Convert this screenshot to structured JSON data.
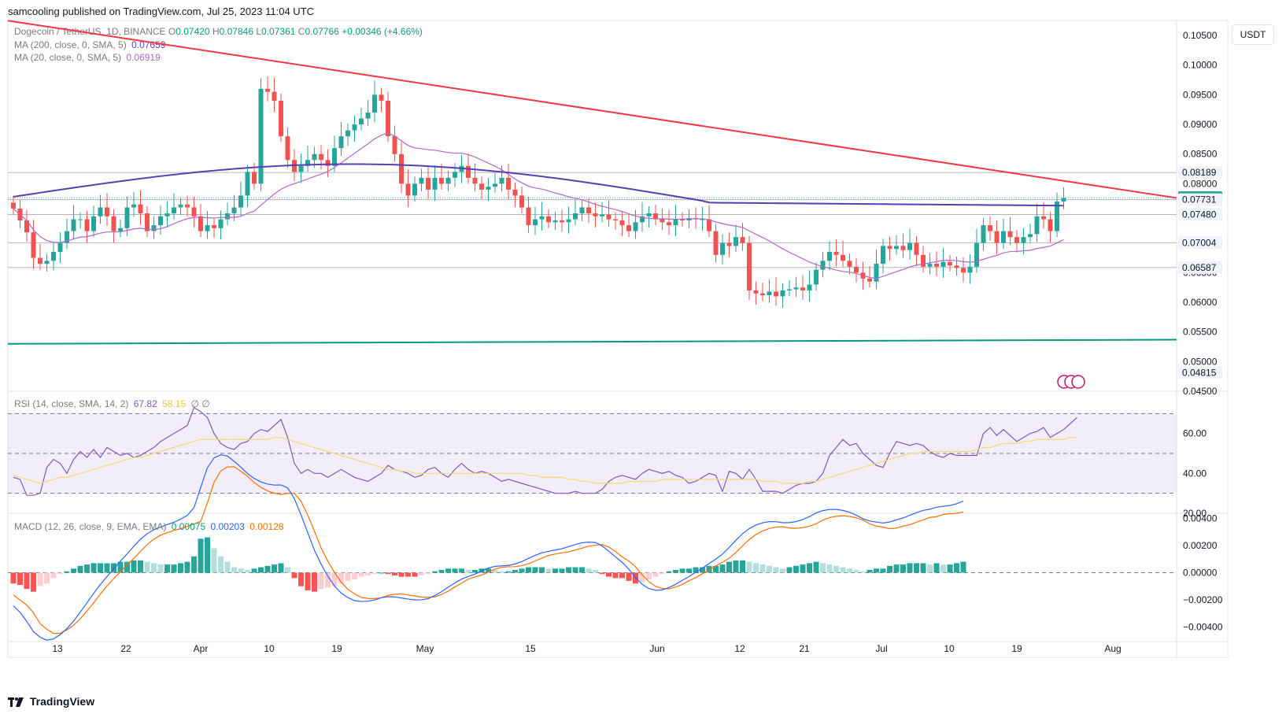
{
  "header": {
    "text": "samcooling published on TradingView.com, Jul 25, 2023 11:04 UTC"
  },
  "symbol": {
    "name": "Dogecoin / TetherUS, 1D, BINANCE",
    "open_label": "O",
    "open": "0.07420",
    "high_label": "H",
    "high": "0.07846",
    "low_label": "L",
    "low": "0.07361",
    "close_label": "C",
    "close": "0.07766",
    "change": "+0.00346 (+4.66%)"
  },
  "ma200": {
    "label": "MA (200, close, 0, SMA, 5)",
    "value": "0.07659",
    "color": "#5b3fb0"
  },
  "ma20": {
    "label": "MA (20, close, 0, SMA, 5)",
    "value": "0.06919",
    "color": "#b467c9"
  },
  "currency_button": "USDT",
  "footer": {
    "brand": "TradingView"
  },
  "colors": {
    "up": "#26a69a",
    "down": "#ef5350",
    "resistance": "#f23645",
    "support": "#089981",
    "rsi": "#7e57c2",
    "rsi_ma": "#f7d774",
    "macd": "#2962ff",
    "signal": "#ff6d00"
  },
  "chart_data": [
    {
      "type": "candlestick",
      "title": "Dogecoin / TetherUS, 1D, BINANCE",
      "ylim": [
        0.045,
        0.107
      ],
      "y_ticks": [
        "0.10500",
        "0.10000",
        "0.09500",
        "0.09000",
        "0.08500",
        "0.08000",
        "0.07500",
        "0.07000",
        "0.06500",
        "0.06000",
        "0.05500",
        "0.05000",
        "0.04500"
      ],
      "x_ticks": [
        "13",
        "22",
        "Apr",
        "10",
        "19",
        "May",
        "15",
        "Jun",
        "12",
        "21",
        "Jul",
        "10",
        "19",
        "Aug"
      ],
      "price_labels": [
        {
          "value": "0.08189",
          "highlight": false
        },
        {
          "value": "0.07766",
          "highlight": true
        },
        {
          "value": "0.07731",
          "highlight": false
        },
        {
          "value": "0.07480",
          "highlight": false
        },
        {
          "value": "0.07004",
          "highlight": false
        },
        {
          "value": "0.06587",
          "highlight": false
        },
        {
          "value": "0.04815",
          "highlight": false
        }
      ],
      "horizontal_levels": [
        0.08189,
        0.07731,
        0.0748,
        0.07004,
        0.06587
      ],
      "resistance_line": {
        "from": {
          "date": "Mar 4",
          "value": 0.1075
        },
        "to": {
          "date": "Aug 13",
          "value": 0.0776
        }
      },
      "support_line": {
        "from": {
          "date": "Mar 4",
          "value": 0.053
        },
        "to": {
          "date": "Aug 13",
          "value": 0.0537
        }
      },
      "candles_close": [
        0.0758,
        0.0738,
        0.0718,
        0.0675,
        0.0665,
        0.067,
        0.0685,
        0.07,
        0.072,
        0.074,
        0.074,
        0.072,
        0.0745,
        0.076,
        0.0745,
        0.072,
        0.0725,
        0.076,
        0.0765,
        0.075,
        0.072,
        0.073,
        0.0745,
        0.075,
        0.076,
        0.0765,
        0.076,
        0.0745,
        0.072,
        0.073,
        0.0725,
        0.074,
        0.075,
        0.076,
        0.078,
        0.082,
        0.08,
        0.096,
        0.0955,
        0.094,
        0.088,
        0.084,
        0.082,
        0.083,
        0.084,
        0.085,
        0.084,
        0.083,
        0.086,
        0.088,
        0.089,
        0.09,
        0.091,
        0.092,
        0.095,
        0.094,
        0.088,
        0.085,
        0.08,
        0.078,
        0.08,
        0.081,
        0.079,
        0.081,
        0.08,
        0.081,
        0.082,
        0.083,
        0.081,
        0.08,
        0.079,
        0.0795,
        0.08,
        0.081,
        0.079,
        0.078,
        0.076,
        0.073,
        0.074,
        0.0745,
        0.0735,
        0.0738,
        0.0735,
        0.074,
        0.075,
        0.076,
        0.075,
        0.0745,
        0.0748,
        0.074,
        0.0738,
        0.073,
        0.072,
        0.0735,
        0.0745,
        0.075,
        0.074,
        0.0735,
        0.073,
        0.074,
        0.0738,
        0.0742,
        0.074,
        0.074,
        0.072,
        0.068,
        0.07,
        0.0695,
        0.071,
        0.07,
        0.062,
        0.0615,
        0.0612,
        0.0618,
        0.061,
        0.062,
        0.0622,
        0.0625,
        0.062,
        0.063,
        0.0655,
        0.067,
        0.0685,
        0.068,
        0.067,
        0.066,
        0.065,
        0.064,
        0.0635,
        0.0665,
        0.0695,
        0.069,
        0.0695,
        0.0688,
        0.07,
        0.068,
        0.066,
        0.0665,
        0.066,
        0.0668,
        0.0662,
        0.0658,
        0.065,
        0.066,
        0.07,
        0.073,
        0.072,
        0.07,
        0.072,
        0.071,
        0.07,
        0.071,
        0.0715,
        0.0745,
        0.074,
        0.072,
        0.077,
        0.0776
      ]
    },
    {
      "type": "line",
      "title": "RSI (14, close, SMA, 14, 2)",
      "label": "RSI (14, close, SMA, 14, 2)",
      "value": "67.82",
      "ma_value": "58.15",
      "extra": "∅ ∅",
      "ylim": [
        20,
        80
      ],
      "y_ticks": [
        "60.00",
        "40.00",
        "20.00"
      ],
      "bands": [
        70,
        50,
        30
      ],
      "series": [
        {
          "name": "RSI",
          "values": [
            38,
            37,
            29,
            29,
            30,
            43,
            47,
            45,
            40,
            47,
            51,
            48,
            52,
            48,
            53,
            51,
            49,
            50,
            48,
            49,
            51,
            53,
            56,
            58,
            60,
            62,
            64,
            73,
            71,
            68,
            60,
            55,
            53,
            52,
            55,
            56,
            60,
            62,
            61,
            64,
            67,
            58,
            45,
            40,
            42,
            40,
            40,
            38,
            40,
            42,
            40,
            38,
            37,
            36,
            38,
            40,
            44,
            42,
            41,
            40,
            38,
            39,
            42,
            43,
            40,
            38,
            42,
            45,
            42,
            40,
            41,
            40,
            38,
            36,
            37,
            36,
            35,
            34,
            33,
            32,
            31,
            30,
            30,
            30,
            31,
            30,
            30,
            30,
            32,
            36,
            38,
            39,
            38,
            37,
            40,
            42,
            41,
            40,
            41,
            39,
            38,
            35,
            36,
            38,
            40,
            39,
            31,
            41,
            40,
            37,
            42,
            37,
            31,
            31,
            31,
            30,
            32,
            34,
            35,
            35,
            36,
            40,
            49,
            53,
            57,
            54,
            55,
            50,
            47,
            44,
            43,
            50,
            56,
            55,
            54,
            55,
            54,
            51,
            49,
            48,
            50,
            49,
            49,
            49,
            49,
            60,
            63,
            59,
            62,
            59,
            56,
            58,
            60,
            61,
            63,
            58,
            60,
            62,
            65,
            68
          ]
        },
        {
          "name": "RSI MA",
          "values": [
            39,
            38,
            37,
            36,
            35,
            36,
            37,
            38,
            38,
            39,
            40,
            41,
            42,
            43,
            44,
            45,
            46,
            47,
            48,
            48,
            49,
            50,
            51,
            52,
            53,
            54,
            55,
            56,
            57,
            57,
            57,
            57,
            57,
            57,
            57,
            57,
            57,
            57,
            57,
            58,
            58,
            57,
            56,
            55,
            54,
            53,
            52,
            51,
            50,
            49,
            48,
            47,
            46,
            45,
            44,
            43,
            42,
            42,
            41,
            41,
            40,
            40,
            40,
            40,
            40,
            40,
            40,
            40,
            40,
            40,
            40,
            40,
            40,
            40,
            40,
            40,
            40,
            39,
            39,
            38,
            38,
            38,
            38,
            37,
            37,
            36,
            36,
            35,
            35,
            35,
            35,
            35,
            36,
            36,
            36,
            36,
            36,
            37,
            37,
            37,
            37,
            37,
            37,
            37,
            37,
            37,
            37,
            37,
            37,
            37,
            37,
            37,
            36,
            36,
            36,
            35,
            35,
            35,
            35,
            36,
            36,
            37,
            38,
            39,
            40,
            41,
            42,
            43,
            44,
            45,
            46,
            47,
            48,
            49,
            50,
            50,
            51,
            51,
            51,
            51,
            51,
            51,
            51,
            51,
            52,
            53,
            53,
            54,
            55,
            55,
            55,
            56,
            56,
            57,
            57,
            57,
            57,
            57,
            58,
            58
          ]
        }
      ]
    },
    {
      "type": "bar",
      "title": "MACD (12, 26, close, 9, EMA, EMA)",
      "label": "MACD (12, 26, close, 9, EMA, EMA)",
      "hist_value": "0.00075",
      "macd_value": "0.00203",
      "signal_value": "0.00128",
      "ylim": [
        -0.0049,
        0.0042
      ],
      "y_ticks": [
        "0.00400",
        "0.00200",
        "0.00000",
        "−0.00200",
        "−0.00400"
      ],
      "histogram": [
        -0.0008,
        -0.0009,
        -0.0012,
        -0.0014,
        -0.001,
        -0.0008,
        -0.0004,
        -0.0001,
        0.0001,
        0.0003,
        0.0005,
        0.0006,
        0.0007,
        0.0007,
        0.0007,
        0.0007,
        0.0008,
        0.0008,
        0.0009,
        0.0009,
        0.0008,
        0.0007,
        0.0006,
        0.0006,
        0.0006,
        0.0007,
        0.0008,
        0.0012,
        0.0025,
        0.0026,
        0.0018,
        0.0012,
        0.0008,
        0.0004,
        0.0003,
        0.0002,
        0.0003,
        0.0004,
        0.0005,
        0.0006,
        0.0007,
        0.0004,
        -0.0004,
        -0.001,
        -0.0013,
        -0.0014,
        -0.0012,
        -0.0011,
        -0.001,
        -0.0008,
        -0.0006,
        -0.0005,
        -0.0003,
        -0.0002,
        -0.0001,
        0.0,
        -0.0001,
        -0.0002,
        -0.0003,
        -0.0003,
        -0.0003,
        -0.0002,
        -0.0001,
        0.0001,
        0.0002,
        0.0003,
        0.0003,
        0.0003,
        0.0002,
        0.0002,
        0.0003,
        0.0003,
        0.0002,
        0.0001,
        0.0001,
        0.0002,
        0.0003,
        0.0004,
        0.0004,
        0.0004,
        0.0003,
        0.0003,
        0.0003,
        0.0004,
        0.0004,
        0.0004,
        0.0003,
        0.0002,
        -0.0001,
        -0.0003,
        -0.0004,
        -0.0004,
        -0.0006,
        -0.0008,
        -0.0007,
        -0.0005,
        -0.0003,
        -0.0001,
        0.0001,
        0.0002,
        0.0003,
        0.0003,
        0.0004,
        0.0004,
        0.0005,
        0.0005,
        0.0006,
        0.0008,
        0.0009,
        0.0009,
        0.0008,
        0.0007,
        0.0006,
        0.0005,
        0.0004,
        0.0003,
        0.0004,
        0.0005,
        0.0006,
        0.0007,
        0.0008,
        0.0007,
        0.0006,
        0.0005,
        0.0004,
        0.0003,
        0.0002,
        0.0001,
        0.0002,
        0.0003,
        0.0003,
        0.0005,
        0.0006,
        0.0006,
        0.0007,
        0.0007,
        0.0007,
        0.0006,
        0.0007,
        0.0006,
        0.0006,
        0.0007,
        0.0008
      ]
    }
  ]
}
